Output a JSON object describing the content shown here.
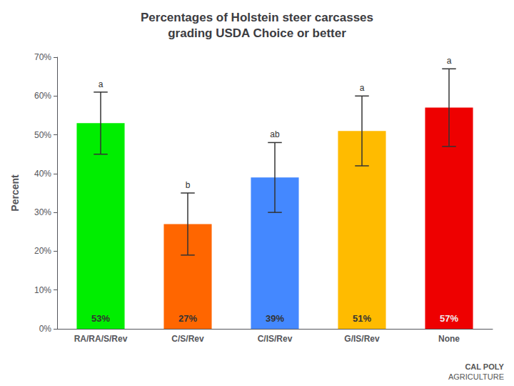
{
  "chart_data": {
    "type": "bar",
    "title": "Percentages of Holstein steer carcasses\ngrading USDA Choice or better",
    "categories": [
      "RA/RA/S/Rev",
      "C/S/Rev",
      "C/IS/Rev",
      "G/IS/Rev",
      "None"
    ],
    "values": [
      53,
      27,
      39,
      51,
      57
    ],
    "value_labels": [
      "53%",
      "27%",
      "39%",
      "51%",
      "57%"
    ],
    "data_labels": true,
    "errors": [
      8,
      8,
      9,
      9,
      10
    ],
    "colors": [
      "#00ee00",
      "#ff6600",
      "#4488ff",
      "#ffbb00",
      "#ee0000"
    ],
    "ylabel": "Percent",
    "ylim": [
      0,
      70
    ],
    "yticks": [
      {
        "value": 0,
        "label": "0%"
      },
      {
        "value": 10,
        "label": "10%"
      },
      {
        "value": 20,
        "label": "20%"
      },
      {
        "value": 30,
        "label": "30%"
      },
      {
        "value": 40,
        "label": "40%"
      },
      {
        "value": 50,
        "label": "50%"
      },
      {
        "value": 60,
        "label": "60%"
      },
      {
        "value": 70,
        "label": "70%"
      }
    ],
    "grid": false,
    "annotations": [
      {
        "text": "a",
        "category": "RA/RA/S/Rev"
      },
      {
        "text": "b",
        "category": "C/S/Rev"
      },
      {
        "text": "ab",
        "category": "C/IS/Rev"
      },
      {
        "text": "a",
        "category": "G/IS/Rev"
      },
      {
        "text": "a",
        "category": "None"
      },
      {
        "text": "CAL POLY"
      },
      {
        "text": "AGRICULTURE"
      }
    ]
  }
}
